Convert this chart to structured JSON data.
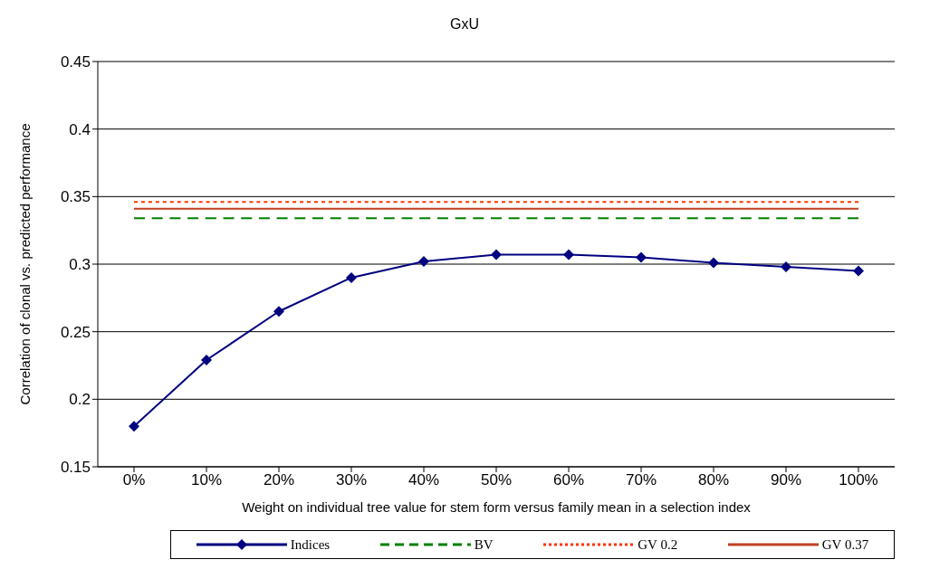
{
  "chart_data": {
    "type": "line",
    "title": "GxU",
    "xlabel": "Weight on individual tree value for stem form versus family mean in a selection index",
    "ylabel": "Correlation of clonal  vs. predicted performance",
    "categories": [
      "0%",
      "10%",
      "20%",
      "30%",
      "40%",
      "50%",
      "60%",
      "70%",
      "80%",
      "90%",
      "100%"
    ],
    "series": [
      {
        "name": "Indices",
        "color": "#000080",
        "marker": "diamond",
        "line_style": "solid",
        "values": [
          0.18,
          0.229,
          0.265,
          0.29,
          0.302,
          0.307,
          0.307,
          0.305,
          0.301,
          0.298,
          0.295
        ]
      },
      {
        "name": "BV",
        "color": "#008000",
        "marker": "none",
        "line_style": "dashed",
        "values": [
          0.334,
          0.334,
          0.334,
          0.334,
          0.334,
          0.334,
          0.334,
          0.334,
          0.334,
          0.334,
          0.334
        ]
      },
      {
        "name": "GV 0.2",
        "color": "#ff3300",
        "marker": "none",
        "line_style": "dotted",
        "values": [
          0.346,
          0.346,
          0.346,
          0.346,
          0.346,
          0.346,
          0.346,
          0.346,
          0.346,
          0.346,
          0.346
        ]
      },
      {
        "name": "GV 0.37",
        "color": "#c04020",
        "marker": "none",
        "line_style": "solid",
        "values": [
          0.341,
          0.341,
          0.341,
          0.341,
          0.341,
          0.341,
          0.341,
          0.341,
          0.341,
          0.341,
          0.341
        ]
      }
    ],
    "ylim": [
      0.15,
      0.45
    ],
    "yticks": [
      0.15,
      0.2,
      0.25,
      0.3,
      0.35,
      0.4,
      0.45
    ],
    "grid": "y",
    "legend": "bottom"
  }
}
